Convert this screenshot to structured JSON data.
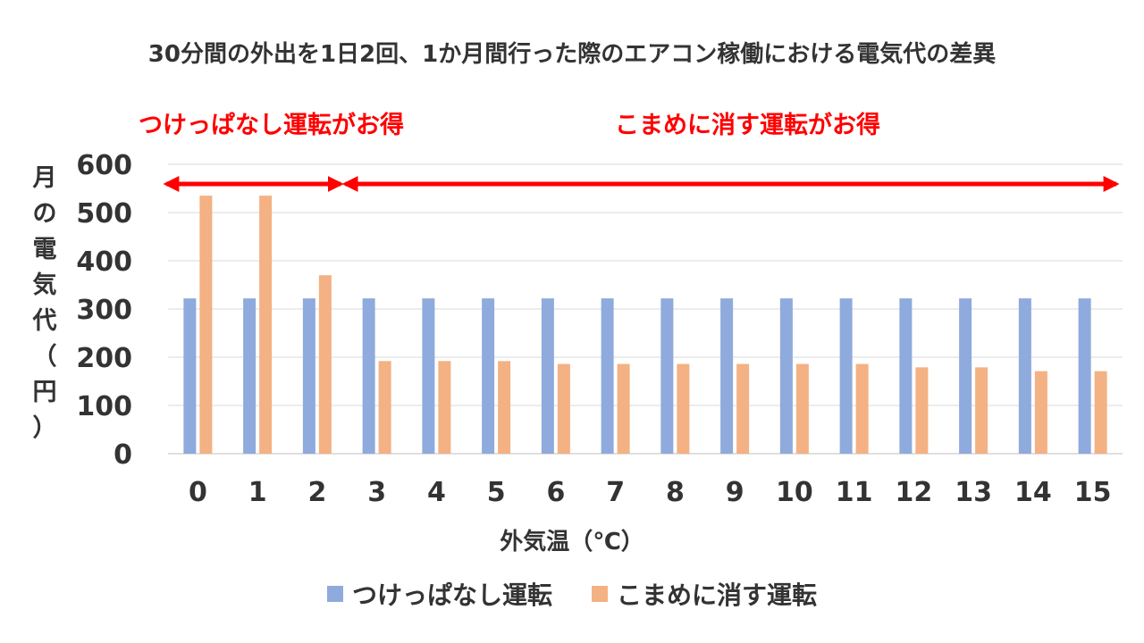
{
  "chart_data": {
    "type": "bar",
    "title": "30分間の外出を1日2回、1か月間行った際のエアコン稼働における電気代の差異",
    "xlabel": "外気温（℃）",
    "ylabel": "月の電気代（円）",
    "ylim": [
      0,
      600
    ],
    "yticks": [
      0,
      100,
      200,
      300,
      400,
      500,
      600
    ],
    "grid": true,
    "legend_position": "bottom",
    "categories": [
      "0",
      "1",
      "2",
      "3",
      "4",
      "5",
      "6",
      "7",
      "8",
      "9",
      "10",
      "11",
      "12",
      "13",
      "14",
      "15"
    ],
    "series": [
      {
        "name": "つけっぱなし運転",
        "color": "#8faadc",
        "values": [
          322,
          322,
          322,
          322,
          322,
          322,
          322,
          322,
          322,
          322,
          322,
          322,
          322,
          322,
          322,
          322
        ]
      },
      {
        "name": "こまめに消す運転",
        "color": "#f4b183",
        "values": [
          535,
          535,
          370,
          192,
          192,
          192,
          186,
          186,
          186,
          186,
          186,
          186,
          179,
          179,
          171,
          171
        ]
      }
    ],
    "annotations": [
      {
        "text": "つけっぱなし運転がお得",
        "from_category": "0",
        "to_category": "2",
        "color": "#ff0000"
      },
      {
        "text": "こまめに消す運転がお得",
        "from_category": "3",
        "to_category": "15",
        "color": "#ff0000"
      }
    ]
  }
}
